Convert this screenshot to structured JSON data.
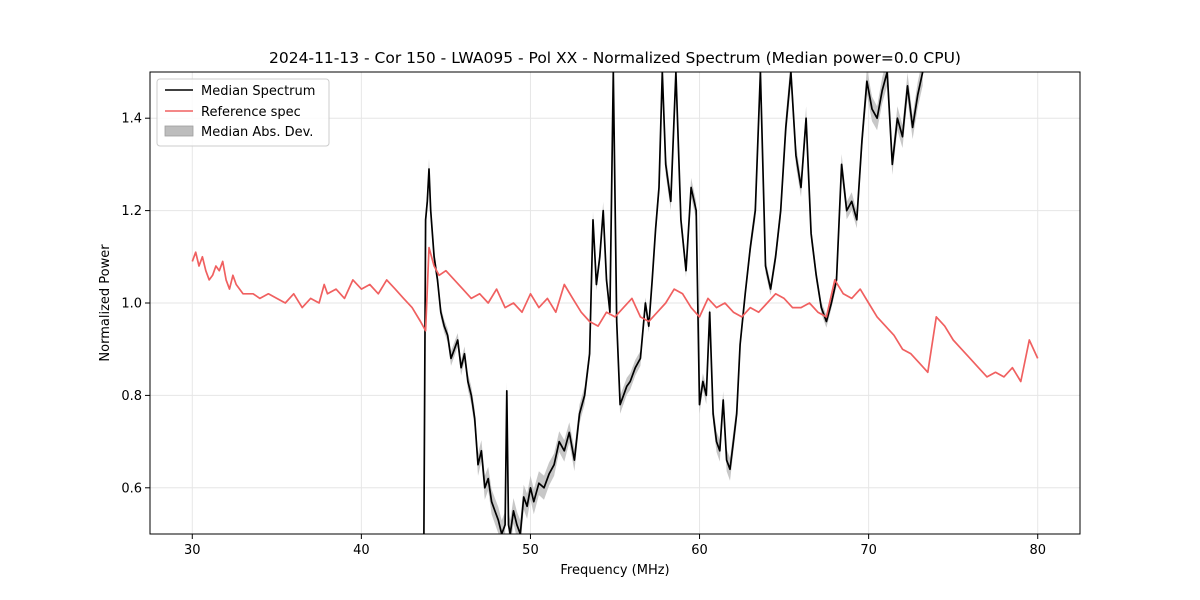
{
  "chart_data": {
    "type": "line",
    "title": "2024-11-13 - Cor 150 - LWA095 - Pol XX - Normalized Spectrum (Median power=0.0 CPU)",
    "xlabel": "Frequency (MHz)",
    "ylabel": "Normalized Power",
    "xlim": [
      27.5,
      82.5
    ],
    "ylim": [
      0.5,
      1.5
    ],
    "xticks": [
      30,
      40,
      50,
      60,
      70,
      80
    ],
    "yticks": [
      0.6,
      0.8,
      1.0,
      1.2,
      1.4
    ],
    "grid": true,
    "legend_position": "top-left",
    "legend": [
      "Median Spectrum",
      "Reference spec",
      "Median Abs. Dev."
    ],
    "colors": {
      "median": "#000000",
      "reference": "#f06060",
      "reference_overlap": "#8b1a1a",
      "mad_fill": "#bdbdbd",
      "grid": "#e6e6e6"
    },
    "series": [
      {
        "name": "Median Spectrum",
        "x": [
          43.7,
          43.8,
          43.9,
          44.0,
          44.1,
          44.2,
          44.3,
          44.5,
          44.7,
          44.9,
          45.1,
          45.3,
          45.5,
          45.7,
          45.9,
          46.1,
          46.3,
          46.5,
          46.7,
          46.9,
          47.1,
          47.3,
          47.5,
          47.7,
          47.9,
          48.1,
          48.3,
          48.5,
          48.6,
          48.7,
          48.8,
          49.0,
          49.2,
          49.4,
          49.6,
          49.8,
          50.0,
          50.2,
          50.5,
          50.8,
          51.1,
          51.4,
          51.7,
          52.0,
          52.3,
          52.6,
          52.9,
          53.2,
          53.5,
          53.7,
          53.9,
          54.1,
          54.3,
          54.5,
          54.7,
          54.9,
          55.1,
          55.3,
          55.5,
          55.7,
          55.9,
          56.2,
          56.5,
          56.8,
          57.0,
          57.2,
          57.4,
          57.6,
          57.8,
          58.0,
          58.3,
          58.6,
          58.9,
          59.2,
          59.5,
          59.8,
          60.0,
          60.2,
          60.4,
          60.6,
          60.8,
          61.0,
          61.2,
          61.4,
          61.6,
          61.8,
          62.0,
          62.2,
          62.4,
          62.7,
          63.0,
          63.3,
          63.6,
          63.9,
          64.2,
          64.5,
          64.8,
          65.1,
          65.4,
          65.7,
          66.0,
          66.3,
          66.6,
          66.9,
          67.2,
          67.5,
          67.8,
          68.1,
          68.4,
          68.7,
          69.0,
          69.3,
          69.6,
          69.9,
          70.2,
          70.5,
          70.8,
          71.1,
          71.4,
          71.7,
          72.0,
          72.3,
          72.6,
          72.9,
          73.2
        ],
        "values": [
          0.5,
          1.18,
          1.22,
          1.29,
          1.2,
          1.15,
          1.1,
          1.05,
          0.98,
          0.95,
          0.93,
          0.88,
          0.9,
          0.92,
          0.86,
          0.89,
          0.83,
          0.8,
          0.75,
          0.65,
          0.68,
          0.6,
          0.62,
          0.57,
          0.55,
          0.53,
          0.5,
          0.52,
          0.81,
          0.52,
          0.5,
          0.55,
          0.52,
          0.5,
          0.58,
          0.56,
          0.6,
          0.57,
          0.61,
          0.6,
          0.63,
          0.65,
          0.7,
          0.68,
          0.72,
          0.66,
          0.76,
          0.8,
          0.89,
          1.18,
          1.04,
          1.1,
          1.2,
          1.05,
          0.98,
          1.5,
          0.96,
          0.78,
          0.8,
          0.82,
          0.83,
          0.86,
          0.88,
          1.0,
          0.95,
          1.05,
          1.16,
          1.25,
          1.5,
          1.3,
          1.22,
          1.5,
          1.18,
          1.07,
          1.25,
          1.2,
          0.78,
          0.83,
          0.8,
          0.98,
          0.76,
          0.7,
          0.68,
          0.79,
          0.66,
          0.64,
          0.7,
          0.76,
          0.91,
          1.02,
          1.12,
          1.2,
          1.5,
          1.08,
          1.03,
          1.1,
          1.2,
          1.38,
          1.5,
          1.32,
          1.25,
          1.4,
          1.15,
          1.06,
          0.99,
          0.96,
          1.0,
          1.05,
          1.3,
          1.2,
          1.22,
          1.18,
          1.35,
          1.48,
          1.42,
          1.4,
          1.46,
          1.5,
          1.3,
          1.4,
          1.36,
          1.47,
          1.38,
          1.45,
          1.5
        ]
      },
      {
        "name": "Reference spec",
        "x": [
          30.0,
          30.2,
          30.4,
          30.6,
          30.8,
          31.0,
          31.2,
          31.4,
          31.6,
          31.8,
          32.0,
          32.2,
          32.4,
          32.6,
          32.8,
          33.0,
          33.3,
          33.6,
          34.0,
          34.5,
          35.0,
          35.5,
          36.0,
          36.5,
          37.0,
          37.5,
          37.8,
          38.0,
          38.5,
          39.0,
          39.5,
          40.0,
          40.5,
          41.0,
          41.5,
          42.0,
          42.5,
          43.0,
          43.5,
          43.8,
          44.0,
          44.3,
          44.6,
          45.0,
          45.5,
          46.0,
          46.5,
          47.0,
          47.5,
          48.0,
          48.5,
          49.0,
          49.5,
          50.0,
          50.5,
          51.0,
          51.5,
          52.0,
          52.5,
          53.0,
          53.5,
          54.0,
          54.5,
          55.0,
          55.5,
          56.0,
          56.5,
          57.0,
          57.5,
          58.0,
          58.5,
          59.0,
          59.5,
          60.0,
          60.5,
          61.0,
          61.5,
          62.0,
          62.5,
          63.0,
          63.5,
          64.0,
          64.5,
          65.0,
          65.5,
          66.0,
          66.5,
          67.0,
          67.5,
          68.0,
          68.5,
          69.0,
          69.5,
          70.0,
          70.5,
          71.0,
          71.5,
          72.0,
          72.5,
          73.0,
          73.5,
          74.0,
          74.5,
          75.0,
          75.5,
          76.0,
          76.5,
          77.0,
          77.5,
          78.0,
          78.5,
          79.0,
          79.5,
          80.0
        ],
        "values": [
          1.09,
          1.11,
          1.08,
          1.1,
          1.07,
          1.05,
          1.06,
          1.08,
          1.07,
          1.09,
          1.05,
          1.03,
          1.06,
          1.04,
          1.03,
          1.02,
          1.02,
          1.02,
          1.01,
          1.02,
          1.01,
          1.0,
          1.02,
          0.99,
          1.01,
          1.0,
          1.04,
          1.02,
          1.03,
          1.01,
          1.05,
          1.03,
          1.04,
          1.02,
          1.05,
          1.03,
          1.01,
          0.99,
          0.96,
          0.94,
          1.12,
          1.08,
          1.06,
          1.07,
          1.05,
          1.03,
          1.01,
          1.02,
          1.0,
          1.03,
          0.99,
          1.0,
          0.98,
          1.02,
          0.99,
          1.01,
          0.98,
          1.04,
          1.01,
          0.98,
          0.96,
          0.95,
          0.98,
          0.97,
          0.99,
          1.01,
          0.97,
          0.96,
          0.98,
          1.0,
          1.03,
          1.02,
          0.99,
          0.97,
          1.01,
          0.99,
          1.0,
          0.98,
          0.97,
          0.99,
          0.98,
          1.0,
          1.02,
          1.01,
          0.99,
          0.99,
          1.0,
          0.98,
          0.97,
          1.05,
          1.02,
          1.01,
          1.03,
          1.0,
          0.97,
          0.95,
          0.93,
          0.9,
          0.89,
          0.87,
          0.85,
          0.97,
          0.95,
          0.92,
          0.9,
          0.88,
          0.86,
          0.84,
          0.85,
          0.84,
          0.86,
          0.83,
          0.92,
          0.88
        ]
      }
    ]
  }
}
